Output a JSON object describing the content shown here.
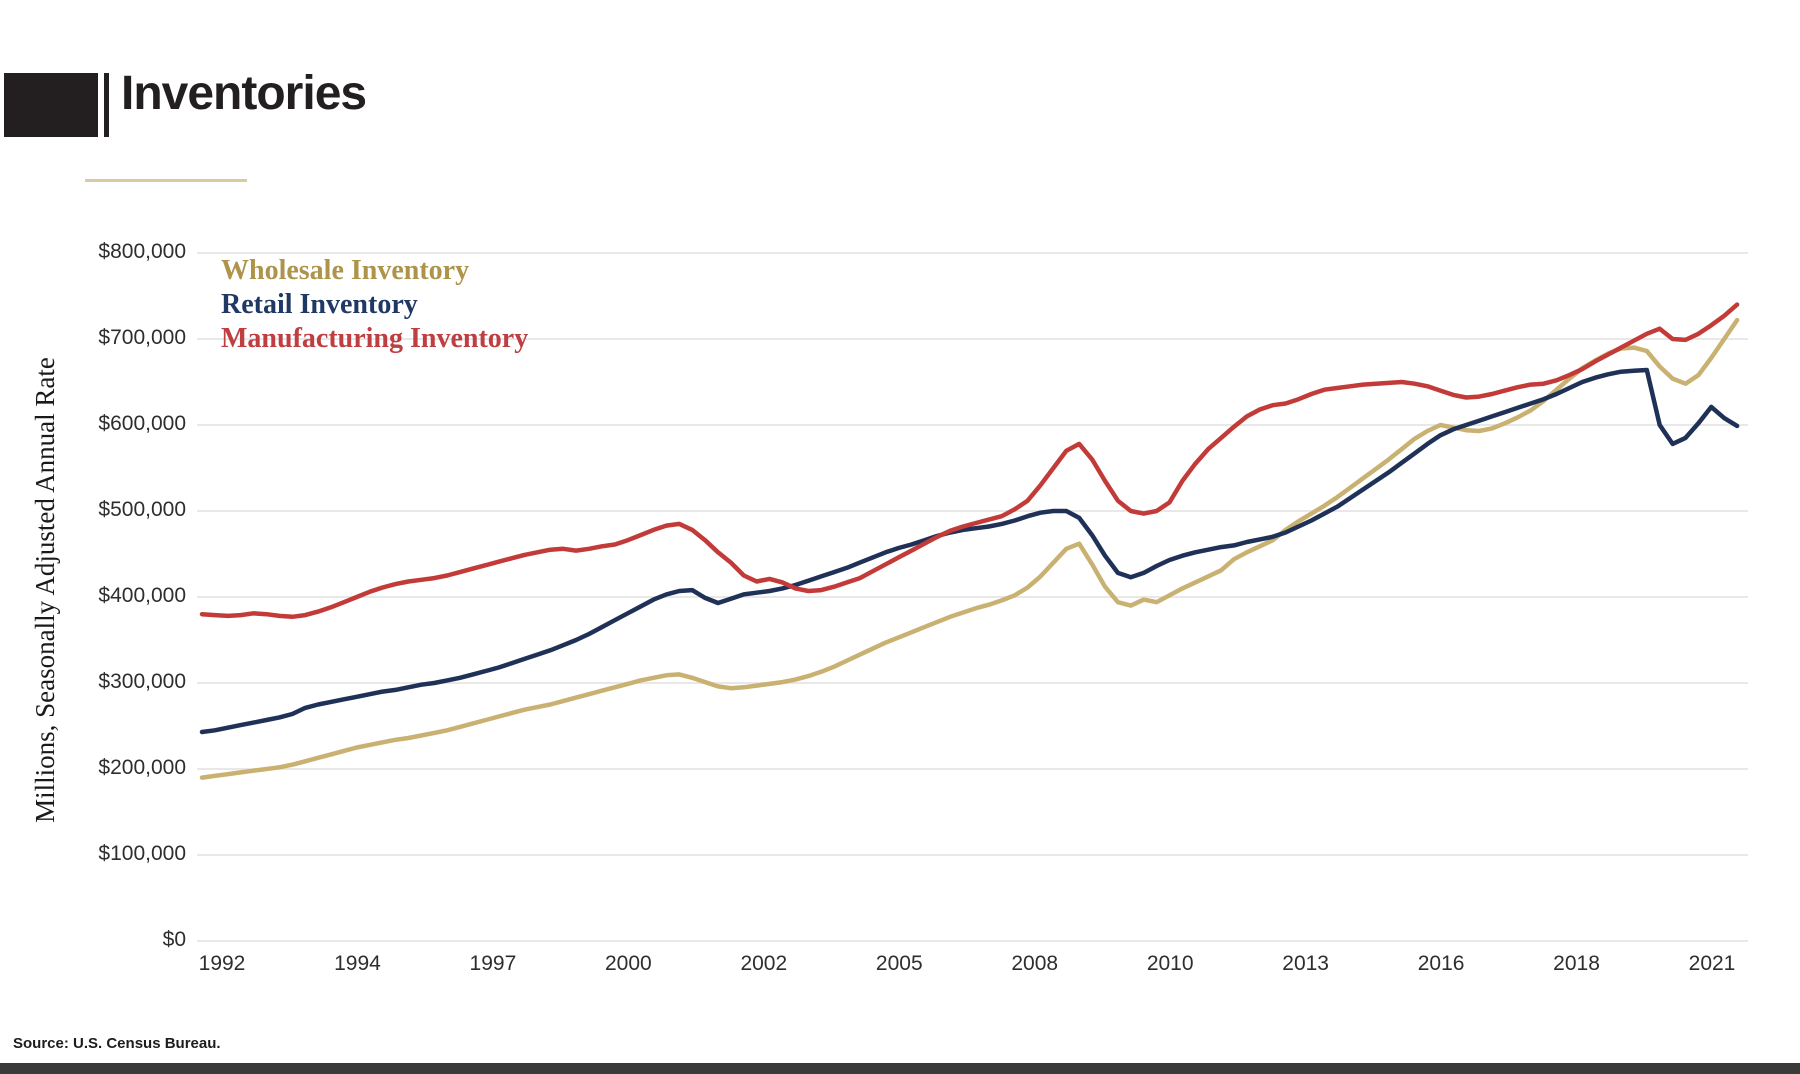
{
  "title": "Inventories",
  "y_axis_title": "Millions, Seasonally Adjusted Annual Rate",
  "source_note": "Source: U.S. Census Bureau.",
  "colors": {
    "title_block": "#231f20",
    "title_underline": "#d9cba0",
    "gridline": "#e8e8e8",
    "bottom_bar": "#3a3a3a"
  },
  "legend": [
    {
      "label": "Wholesale Inventory",
      "color": "#ae9449"
    },
    {
      "label": "Retail Inventory",
      "color": "#1f3864"
    },
    {
      "label": "Manufacturing Inventory",
      "color": "#bf3e42"
    }
  ],
  "y_ticks": [
    "$800,000",
    "$700,000",
    "$600,000",
    "$500,000",
    "$400,000",
    "$300,000",
    "$200,000",
    "$100,000",
    "$0"
  ],
  "x_ticks": [
    "1992",
    "1994",
    "1997",
    "2000",
    "2002",
    "2005",
    "2008",
    "2010",
    "2013",
    "2016",
    "2018",
    "2021"
  ],
  "chart_data": {
    "type": "line",
    "title": "Inventories",
    "xlabel": "",
    "ylabel": "Millions, Seasonally Adjusted Annual Rate",
    "unit": "USD millions, seasonally adjusted annual rate",
    "ylim": [
      0,
      800000
    ],
    "grid": true,
    "legend_position": "top-left inside plot",
    "frequency": "quarterly",
    "x_start": "1992-Q1",
    "x_end": "2021-Q4",
    "x_tick_labels": [
      "1992",
      "1994",
      "1997",
      "2000",
      "2002",
      "2005",
      "2008",
      "2010",
      "2013",
      "2016",
      "2018",
      "2021"
    ],
    "series": [
      {
        "name": "Wholesale Inventory",
        "color": "#c9b172",
        "values": [
          190000,
          192000,
          194000,
          196000,
          198000,
          200000,
          202000,
          205000,
          209000,
          213000,
          217000,
          221000,
          225000,
          228000,
          231000,
          234000,
          236000,
          239000,
          242000,
          245000,
          249000,
          253000,
          257000,
          261000,
          265000,
          269000,
          272000,
          275000,
          279000,
          283000,
          287000,
          291000,
          295000,
          299000,
          303000,
          306000,
          309000,
          310000,
          306000,
          301000,
          296000,
          294000,
          295000,
          297000,
          299000,
          301000,
          304000,
          308000,
          313000,
          319000,
          326000,
          333000,
          340000,
          347000,
          353000,
          359000,
          365000,
          371000,
          377000,
          382000,
          387000,
          391000,
          396000,
          402000,
          411000,
          424000,
          440000,
          456000,
          462000,
          438000,
          412000,
          394000,
          390000,
          397000,
          394000,
          402000,
          410000,
          417000,
          424000,
          431000,
          444000,
          452000,
          459000,
          466000,
          478000,
          488000,
          497000,
          506000,
          516000,
          527000,
          538000,
          549000,
          560000,
          572000,
          584000,
          593000,
          600000,
          597000,
          594000,
          593000,
          596000,
          602000,
          609000,
          617000,
          628000,
          641000,
          654000,
          666000,
          675000,
          683000,
          689000,
          690000,
          686000,
          668000,
          654000,
          648000,
          658000,
          678000,
          700000,
          722000
        ]
      },
      {
        "name": "Retail Inventory",
        "color": "#1f3157",
        "values": [
          243000,
          245000,
          248000,
          251000,
          254000,
          257000,
          260000,
          264000,
          271000,
          275000,
          278000,
          281000,
          284000,
          287000,
          290000,
          292000,
          295000,
          298000,
          300000,
          303000,
          306000,
          310000,
          314000,
          318000,
          323000,
          328000,
          333000,
          338000,
          344000,
          350000,
          357000,
          365000,
          373000,
          381000,
          389000,
          397000,
          403000,
          407000,
          408000,
          399000,
          393000,
          398000,
          403000,
          405000,
          407000,
          410000,
          414000,
          419000,
          424000,
          429000,
          434000,
          440000,
          446000,
          452000,
          457000,
          461000,
          466000,
          471000,
          475000,
          478000,
          480000,
          482000,
          485000,
          489000,
          494000,
          498000,
          500000,
          500000,
          492000,
          472000,
          448000,
          428000,
          423000,
          428000,
          436000,
          443000,
          448000,
          452000,
          455000,
          458000,
          460000,
          464000,
          467000,
          470000,
          475000,
          482000,
          489000,
          497000,
          505000,
          515000,
          525000,
          535000,
          545000,
          556000,
          567000,
          578000,
          588000,
          595000,
          600000,
          605000,
          610000,
          615000,
          620000,
          625000,
          630000,
          636000,
          643000,
          650000,
          655000,
          659000,
          662000,
          663000,
          664000,
          600000,
          578000,
          585000,
          602000,
          621000,
          608000,
          599000
        ]
      },
      {
        "name": "Manufacturing Inventory",
        "color": "#c23b38",
        "values": [
          380000,
          379000,
          378000,
          379000,
          381000,
          380000,
          378000,
          377000,
          379000,
          383000,
          388000,
          394000,
          400000,
          406000,
          411000,
          415000,
          418000,
          420000,
          422000,
          425000,
          429000,
          433000,
          437000,
          441000,
          445000,
          449000,
          452000,
          455000,
          456000,
          454000,
          456000,
          459000,
          461000,
          466000,
          472000,
          478000,
          483000,
          485000,
          478000,
          466000,
          452000,
          440000,
          425000,
          418000,
          421000,
          417000,
          410000,
          407000,
          408000,
          412000,
          417000,
          422000,
          430000,
          438000,
          446000,
          454000,
          462000,
          470000,
          477000,
          482000,
          486000,
          490000,
          494000,
          502000,
          512000,
          530000,
          550000,
          570000,
          578000,
          560000,
          535000,
          512000,
          500000,
          497000,
          500000,
          510000,
          535000,
          555000,
          572000,
          585000,
          598000,
          610000,
          618000,
          623000,
          625000,
          630000,
          636000,
          641000,
          643000,
          645000,
          647000,
          648000,
          649000,
          650000,
          648000,
          645000,
          640000,
          635000,
          632000,
          633000,
          636000,
          640000,
          644000,
          647000,
          648000,
          652000,
          658000,
          665000,
          674000,
          682000,
          690000,
          698000,
          706000,
          712000,
          700000,
          699000,
          706000,
          716000,
          727000,
          740000
        ]
      }
    ]
  }
}
